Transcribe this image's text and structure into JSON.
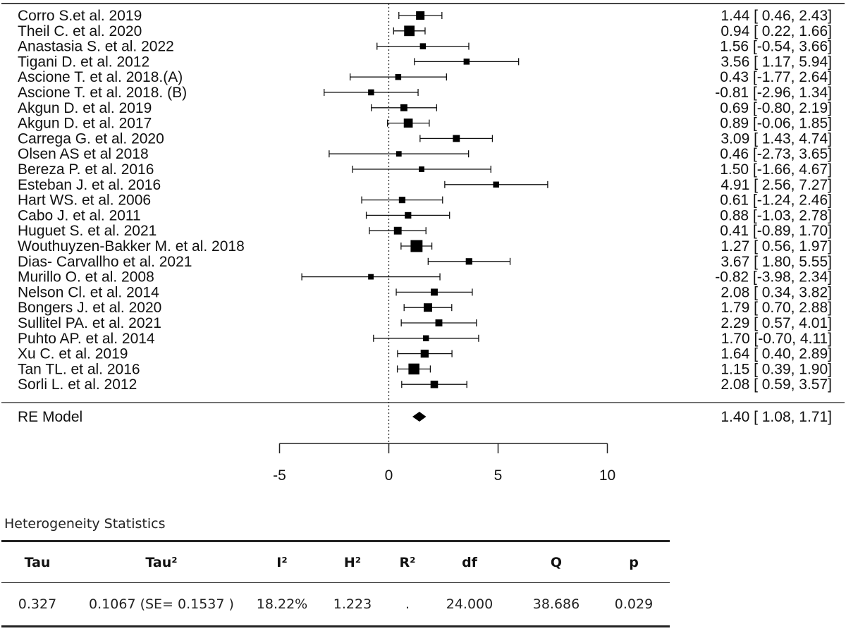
{
  "chart_data": {
    "type": "forest",
    "xlim": [
      -5,
      10
    ],
    "xticks": [
      -5,
      0,
      5,
      10
    ],
    "reference_line": 0,
    "studies": [
      {
        "label": "Corro  S.et al. 2019",
        "est": 1.44,
        "lo": 0.46,
        "hi": 2.43,
        "ci_text": "1.44 [ 0.46, 2.43]",
        "weight": 0.5
      },
      {
        "label": "Theil C. et al. 2020",
        "est": 0.94,
        "lo": 0.22,
        "hi": 1.66,
        "ci_text": "0.94 [ 0.22, 1.66]",
        "weight": 0.7
      },
      {
        "label": "Anastasia S. et al. 2022",
        "est": 1.56,
        "lo": -0.54,
        "hi": 3.66,
        "ci_text": "1.56 [-0.54, 3.66]",
        "weight": 0.25
      },
      {
        "label": "Tigani D. et al. 2012",
        "est": 3.56,
        "lo": 1.17,
        "hi": 5.94,
        "ci_text": "3.56 [ 1.17, 5.94]",
        "weight": 0.25
      },
      {
        "label": "Ascione T. et al. 2018.(A)",
        "est": 0.43,
        "lo": -1.77,
        "hi": 2.64,
        "ci_text": "0.43 [-1.77, 2.64]",
        "weight": 0.25
      },
      {
        "label": "Ascione T. et al. 2018. (B)",
        "est": -0.81,
        "lo": -2.96,
        "hi": 1.34,
        "ci_text": "-0.81 [-2.96, 1.34]",
        "weight": 0.25
      },
      {
        "label": "Akgun D. et al. 2019",
        "est": 0.69,
        "lo": -0.8,
        "hi": 2.19,
        "ci_text": "0.69 [-0.80, 2.19]",
        "weight": 0.35
      },
      {
        "label": "Akgun D. et al. 2017",
        "est": 0.89,
        "lo": -0.06,
        "hi": 1.85,
        "ci_text": "0.89 [-0.06, 1.85]",
        "weight": 0.55
      },
      {
        "label": "Carrega G. et al. 2020",
        "est": 3.09,
        "lo": 1.43,
        "hi": 4.74,
        "ci_text": "3.09 [ 1.43, 4.74]",
        "weight": 0.35
      },
      {
        "label": "Olsen AS et al 2018",
        "est": 0.46,
        "lo": -2.73,
        "hi": 3.65,
        "ci_text": "0.46 [-2.73, 3.65]",
        "weight": 0.2
      },
      {
        "label": "Bereza P. et al. 2016",
        "est": 1.5,
        "lo": -1.66,
        "hi": 4.67,
        "ci_text": "1.50 [-1.66, 4.67]",
        "weight": 0.2
      },
      {
        "label": "Esteban J. et al. 2016",
        "est": 4.91,
        "lo": 2.56,
        "hi": 7.27,
        "ci_text": "4.91 [ 2.56, 7.27]",
        "weight": 0.25
      },
      {
        "label": "Hart WS. et al. 2006",
        "est": 0.61,
        "lo": -1.24,
        "hi": 2.46,
        "ci_text": "0.61 [-1.24, 2.46]",
        "weight": 0.3
      },
      {
        "label": "Cabo J. et al. 2011",
        "est": 0.88,
        "lo": -1.03,
        "hi": 2.78,
        "ci_text": "0.88 [-1.03, 2.78]",
        "weight": 0.3
      },
      {
        "label": "Huguet S. et al. 2021",
        "est": 0.41,
        "lo": -0.89,
        "hi": 1.7,
        "ci_text": "0.41 [-0.89, 1.70]",
        "weight": 0.42
      },
      {
        "label": "Wouthuyzen-Bakker M. et al. 2018",
        "est": 1.27,
        "lo": 0.56,
        "hi": 1.97,
        "ci_text": "1.27 [ 0.56, 1.97]",
        "weight": 0.85
      },
      {
        "label": "Dias- Carvallho et al. 2021",
        "est": 3.67,
        "lo": 1.8,
        "hi": 5.55,
        "ci_text": "3.67 [ 1.80, 5.55]",
        "weight": 0.3
      },
      {
        "label": "Murillo O. et al. 2008",
        "est": -0.82,
        "lo": -3.98,
        "hi": 2.34,
        "ci_text": "-0.82 [-3.98, 2.34]",
        "weight": 0.2
      },
      {
        "label": "Nelson Cl. et al. 2014",
        "est": 2.08,
        "lo": 0.34,
        "hi": 3.82,
        "ci_text": "2.08 [ 0.34, 3.82]",
        "weight": 0.35
      },
      {
        "label": "Bongers J. et al. 2020",
        "est": 1.79,
        "lo": 0.7,
        "hi": 2.88,
        "ci_text": "1.79 [ 0.70, 2.88]",
        "weight": 0.5
      },
      {
        "label": "Sullitel PA. et al. 2021",
        "est": 2.29,
        "lo": 0.57,
        "hi": 4.01,
        "ci_text": "2.29 [ 0.57, 4.01]",
        "weight": 0.35
      },
      {
        "label": "Puhto AP. et al. 2014",
        "est": 1.7,
        "lo": -0.7,
        "hi": 4.11,
        "ci_text": "1.70 [-0.70, 4.11]",
        "weight": 0.25
      },
      {
        "label": "Xu C. et al. 2019",
        "est": 1.64,
        "lo": 0.4,
        "hi": 2.89,
        "ci_text": "1.64 [ 0.40, 2.89]",
        "weight": 0.45
      },
      {
        "label": "Tan TL. et al. 2016",
        "est": 1.15,
        "lo": 0.39,
        "hi": 1.9,
        "ci_text": "1.15 [ 0.39, 1.90]",
        "weight": 0.75
      },
      {
        "label": "Sorli L. et al. 2012",
        "est": 2.08,
        "lo": 0.59,
        "hi": 3.57,
        "ci_text": "2.08 [ 0.59, 3.57]",
        "weight": 0.4
      }
    ],
    "summary": {
      "label": "RE Model",
      "est": 1.4,
      "lo": 1.08,
      "hi": 1.71,
      "ci_text": "1.40 [ 1.08, 1.71]"
    }
  },
  "heterogeneity": {
    "heading": "Heterogeneity Statistics",
    "headers": [
      "Tau",
      "Tau²",
      "I²",
      "H²",
      "R²",
      "df",
      "Q",
      "p"
    ],
    "values": [
      "0.327",
      "0.1067 (SE= 0.1537 )",
      "18.22%",
      "1.223",
      ".",
      "24.000",
      "38.686",
      "0.029"
    ]
  }
}
